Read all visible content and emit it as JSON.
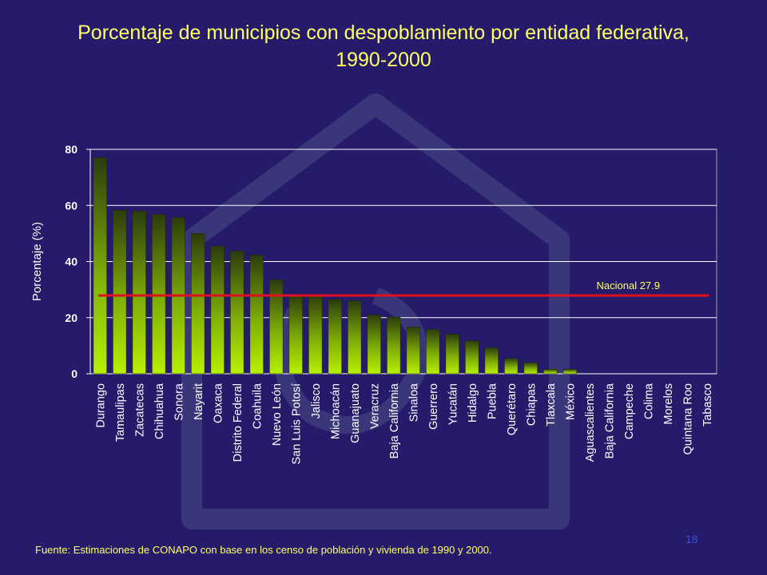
{
  "slide": {
    "title_line1": "Porcentaje de municipios con despoblamiento por entidad federativa,",
    "title_line2": "1990-2000",
    "footnote": "Fuente: Estimaciones de CONAPO con base en los censo de población y vivienda de 1990 y 2000.",
    "page_number": "18"
  },
  "colors": {
    "background": "#261a6b",
    "title": "#ffff66",
    "text": "#ffffff",
    "bar_light": "#b8f000",
    "bar_dark": "#2c3c0c",
    "reference_line": "#e01020",
    "reference_label": "#ffff66",
    "gridline": "#ffffff"
  },
  "chart_data": {
    "type": "bar",
    "title": "Porcentaje de municipios con despoblamiento por entidad federativa, 1990-2000",
    "xlabel": "",
    "ylabel": "Porcentaje (%)",
    "ylim": [
      0,
      80
    ],
    "yticks": [
      0,
      20,
      40,
      60,
      80
    ],
    "grid": true,
    "categories": [
      "Durango",
      "Tamaulipas",
      "Zacatecas",
      "Chihuahua",
      "Sonora",
      "Nayarit",
      "Oaxaca",
      "Distrito Federal",
      "Coahuila",
      "Nuevo León",
      "San Luis Potosí",
      "Jalisco",
      "Michoacán",
      "Guanajuato",
      "Veracruz",
      "Baja California",
      "Sinaloa",
      "Guerrero",
      "Yucatán",
      "Hidalgo",
      "Puebla",
      "Querétaro",
      "Chiapas",
      "Tlaxcala",
      "México",
      "Aguascalientes",
      "Baja California",
      "Campeche",
      "Colima",
      "Morelos",
      "Quintana Roo",
      "Tabasco"
    ],
    "values": [
      77,
      58.3,
      58,
      56.8,
      55.7,
      50,
      45.5,
      43.7,
      42.3,
      33.5,
      28,
      28,
      26.5,
      26,
      21,
      20.2,
      16.7,
      15.8,
      14.1,
      11.8,
      9.3,
      5.5,
      4,
      1.6,
      1.6,
      0,
      0,
      0,
      0,
      0,
      0,
      0
    ],
    "reference_line": {
      "label": "Nacional 27.9",
      "value": 27.9
    }
  }
}
